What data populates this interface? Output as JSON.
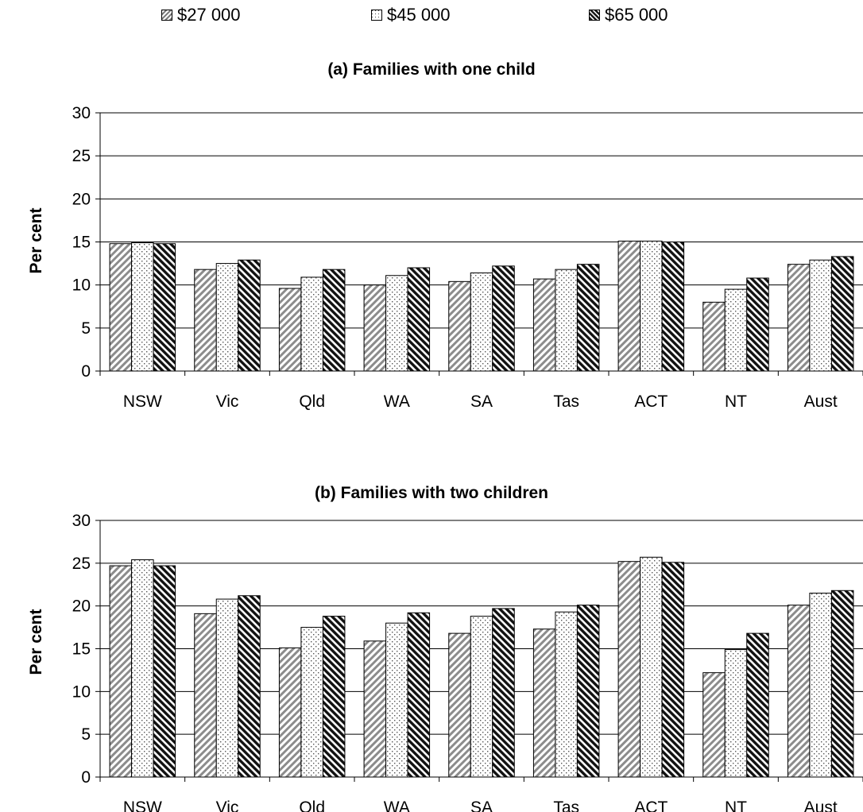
{
  "legend": [
    {
      "label": "$27 000",
      "pattern": "hatch-light"
    },
    {
      "label": "$45 000",
      "pattern": "dots"
    },
    {
      "label": "$65 000",
      "pattern": "hatch-dark"
    }
  ],
  "chart_data": [
    {
      "type": "bar",
      "title": "(a) Families with one child",
      "xlabel": "",
      "ylabel": "Per cent",
      "ylim": [
        0,
        30
      ],
      "yticks": [
        0,
        5,
        10,
        15,
        20,
        25,
        30
      ],
      "grid": true,
      "legend_position": "top",
      "categories": [
        "NSW",
        "Vic",
        "Qld",
        "WA",
        "SA",
        "Tas",
        "ACT",
        "NT",
        "Aust"
      ],
      "series": [
        {
          "name": "$27 000",
          "values": [
            14.8,
            11.8,
            9.6,
            10.0,
            10.4,
            10.7,
            15.1,
            8.0,
            12.4
          ]
        },
        {
          "name": "$45 000",
          "values": [
            14.9,
            12.5,
            10.9,
            11.1,
            11.4,
            11.8,
            15.1,
            9.5,
            12.9
          ]
        },
        {
          "name": "$65 000",
          "values": [
            14.8,
            12.9,
            11.8,
            12.0,
            12.2,
            12.4,
            15.0,
            10.8,
            13.3
          ]
        }
      ]
    },
    {
      "type": "bar",
      "title": "(b) Families with two children",
      "xlabel": "",
      "ylabel": "Per cent",
      "ylim": [
        0,
        30
      ],
      "yticks": [
        0,
        5,
        10,
        15,
        20,
        25,
        30
      ],
      "grid": true,
      "legend_position": "top",
      "categories": [
        "NSW",
        "Vic",
        "Qld",
        "WA",
        "SA",
        "Tas",
        "ACT",
        "NT",
        "Aust"
      ],
      "series": [
        {
          "name": "$27 000",
          "values": [
            24.7,
            19.1,
            15.1,
            15.9,
            16.8,
            17.3,
            25.2,
            12.2,
            20.1
          ]
        },
        {
          "name": "$45 000",
          "values": [
            25.4,
            20.8,
            17.5,
            18.0,
            18.8,
            19.3,
            25.7,
            14.9,
            21.5
          ]
        },
        {
          "name": "$65 000",
          "values": [
            24.7,
            21.2,
            18.8,
            19.2,
            19.7,
            20.1,
            25.1,
            16.8,
            21.8
          ]
        }
      ]
    }
  ]
}
